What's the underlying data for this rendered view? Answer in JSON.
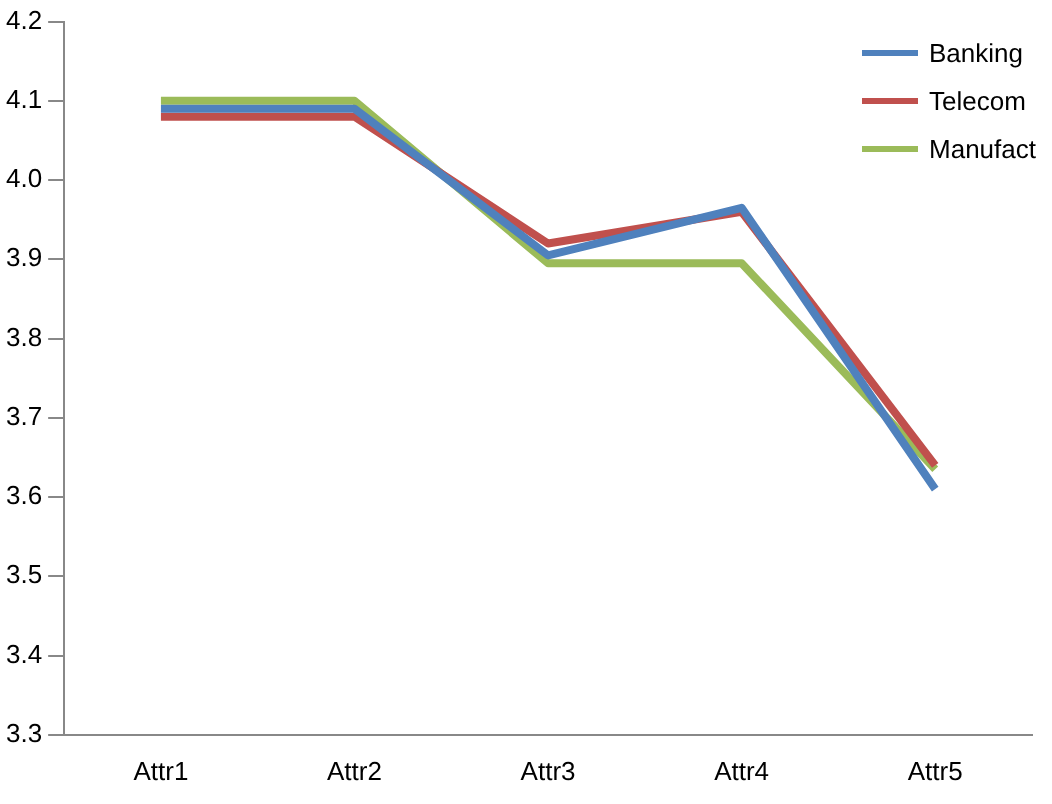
{
  "chart_data": {
    "type": "line",
    "categories": [
      "Attr1",
      "Attr2",
      "Attr3",
      "Attr4",
      "Attr5"
    ],
    "series": [
      {
        "name": "Banking",
        "color": "#4f81bd",
        "values": [
          4.09,
          4.09,
          3.905,
          3.965,
          3.61
        ]
      },
      {
        "name": "Telecom",
        "color": "#c0504d",
        "values": [
          4.08,
          4.08,
          3.92,
          3.96,
          3.64
        ]
      },
      {
        "name": "Manufact",
        "color": "#9bbb59",
        "values": [
          4.1,
          4.1,
          3.895,
          3.895,
          3.635
        ]
      }
    ],
    "ylim": [
      3.3,
      4.2
    ],
    "yticks": [
      3.3,
      3.4,
      3.5,
      3.6,
      3.7,
      3.8,
      3.9,
      {
        "value": 4.0,
        "label": "4.0"
      },
      4.1,
      4.2
    ],
    "grid": false,
    "legend": "top right",
    "marker": "none",
    "line_style": "solid"
  }
}
